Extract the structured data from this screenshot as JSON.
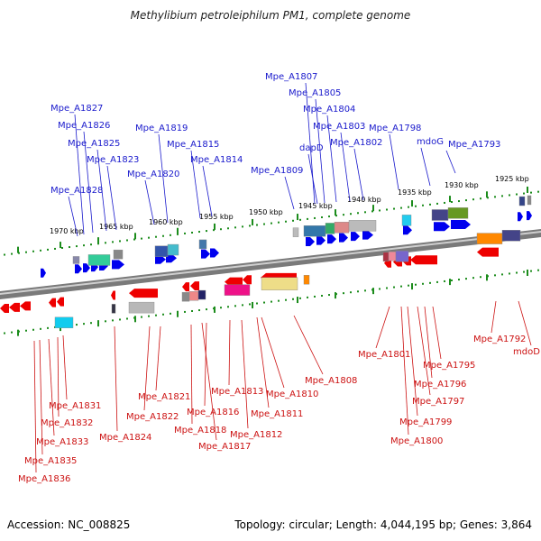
{
  "title": "Methylibium petroleiphilum PM1, complete genome",
  "footer": {
    "accession": "Accession: NC_008825",
    "summary": "Topology: circular; Length: 4,044,195 bp; Genes: 3,864"
  },
  "colors": {
    "forward_arrow": "#0000ee",
    "reverse_arrow": "#ee0000",
    "forward_label": "#1a1acc",
    "reverse_label": "#cc1111",
    "backbone": "#7a7a7a",
    "tick": "#1c8c1c"
  },
  "scale_labels": [
    "1925 kbp",
    "1930 kbp",
    "1935 kbp",
    "1940 kbp",
    "1945 kbp",
    "1950 kbp",
    "1955 kbp",
    "1960 kbp",
    "1965 kbp",
    "1970 kbp"
  ],
  "forward_genes": [
    "Mpe_A1793",
    "mdoG",
    "Mpe_A1798",
    "Mpe_A1802",
    "Mpe_A1803",
    "Mpe_A1804",
    "Mpe_A1805",
    "Mpe_A1807",
    "dapD",
    "Mpe_A1809",
    "Mpe_A1814",
    "Mpe_A1815",
    "Mpe_A1819",
    "Mpe_A1820",
    "Mpe_A1823",
    "Mpe_A1825",
    "Mpe_A1826",
    "Mpe_A1827",
    "Mpe_A1828"
  ],
  "reverse_genes": [
    "Mpe_A1792",
    "mdoD",
    "Mpe_A1795",
    "Mpe_A1796",
    "Mpe_A1797",
    "Mpe_A1799",
    "Mpe_A1800",
    "Mpe_A1801",
    "Mpe_A1808",
    "Mpe_A1810",
    "Mpe_A1811",
    "Mpe_A1812",
    "Mpe_A1813",
    "Mpe_A1816",
    "Mpe_A1817",
    "Mpe_A1818",
    "Mpe_A1821",
    "Mpe_A1822",
    "Mpe_A1824",
    "Mpe_A1831",
    "Mpe_A1832",
    "Mpe_A1833",
    "Mpe_A1835",
    "Mpe_A1836"
  ]
}
